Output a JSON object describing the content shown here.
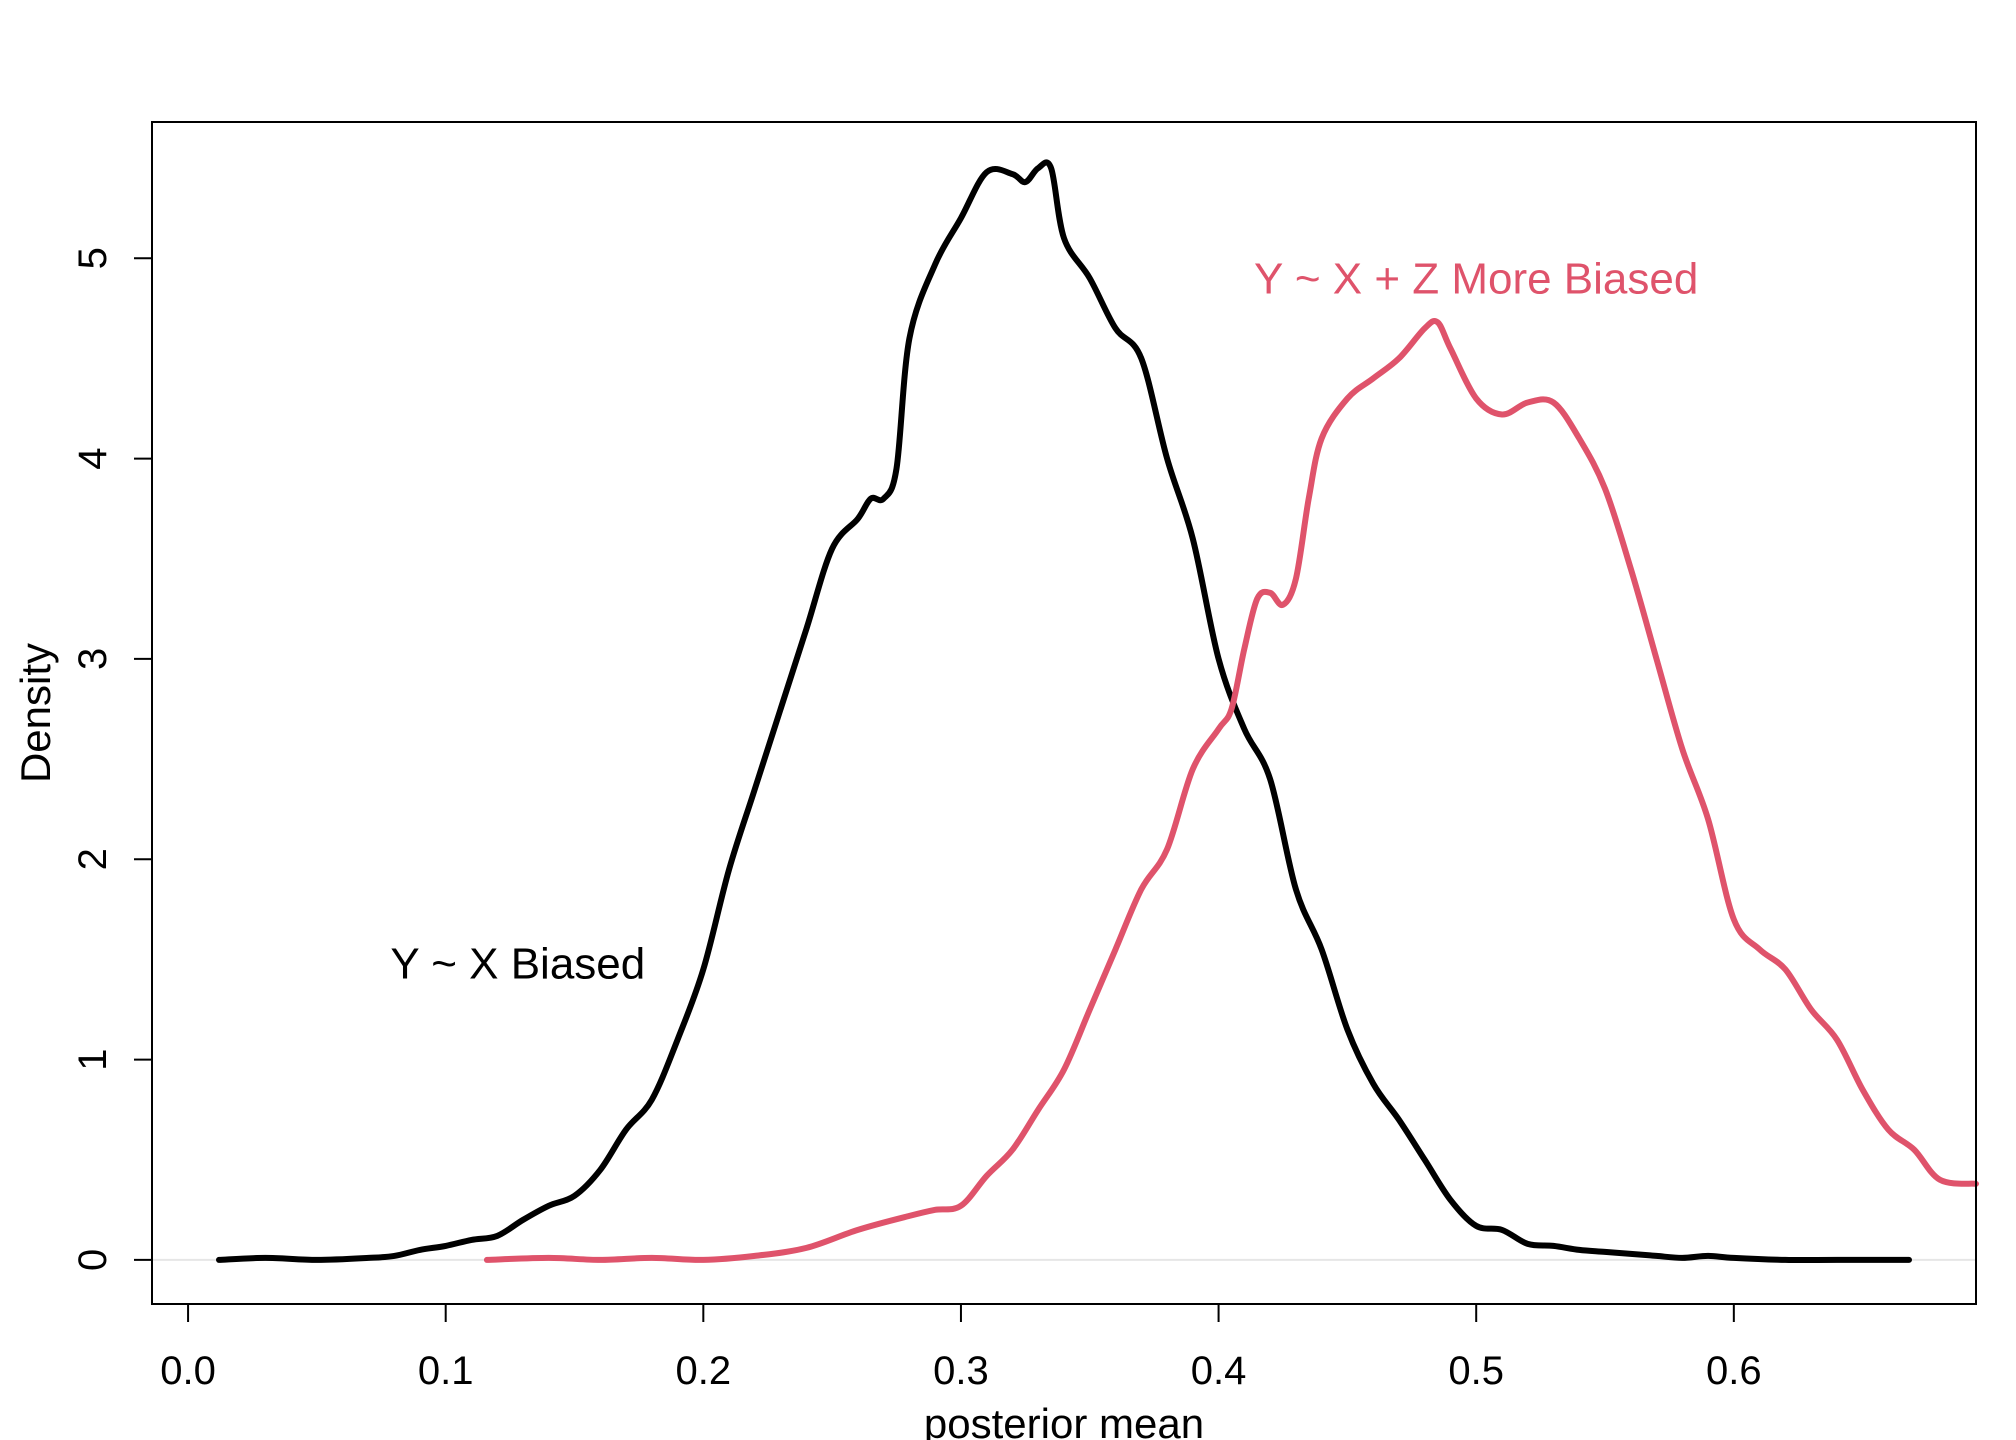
{
  "chart_data": {
    "type": "line",
    "title": "",
    "xlabel": "posterior mean",
    "ylabel": "Density",
    "xlim": [
      -0.014,
      0.694
    ],
    "ylim": [
      -0.22,
      5.68
    ],
    "x_ticks": [
      "0.0",
      "0.1",
      "0.2",
      "0.3",
      "0.4",
      "0.5",
      "0.6"
    ],
    "x_tick_values": [
      0.0,
      0.1,
      0.2,
      0.3,
      0.4,
      0.5,
      0.6
    ],
    "y_ticks": [
      "0",
      "1",
      "2",
      "3",
      "4",
      "5"
    ],
    "y_tick_values": [
      0,
      1,
      2,
      3,
      4,
      5
    ],
    "grid": false,
    "zero_line": true,
    "series": [
      {
        "color": "#000000",
        "x": [
          0.012,
          0.03,
          0.05,
          0.07,
          0.08,
          0.09,
          0.1,
          0.11,
          0.12,
          0.13,
          0.14,
          0.15,
          0.16,
          0.17,
          0.18,
          0.19,
          0.2,
          0.21,
          0.22,
          0.23,
          0.24,
          0.25,
          0.26,
          0.265,
          0.27,
          0.275,
          0.28,
          0.29,
          0.3,
          0.31,
          0.32,
          0.325,
          0.33,
          0.335,
          0.34,
          0.35,
          0.36,
          0.37,
          0.38,
          0.39,
          0.4,
          0.41,
          0.42,
          0.43,
          0.44,
          0.45,
          0.46,
          0.47,
          0.48,
          0.49,
          0.5,
          0.51,
          0.52,
          0.53,
          0.54,
          0.55,
          0.56,
          0.57,
          0.58,
          0.59,
          0.6,
          0.62,
          0.64,
          0.668
        ],
        "y": [
          0.0,
          0.01,
          0.0,
          0.01,
          0.02,
          0.05,
          0.07,
          0.1,
          0.12,
          0.2,
          0.27,
          0.32,
          0.45,
          0.65,
          0.8,
          1.1,
          1.45,
          1.95,
          2.35,
          2.75,
          3.15,
          3.55,
          3.7,
          3.8,
          3.8,
          3.95,
          4.6,
          4.97,
          5.2,
          5.43,
          5.42,
          5.38,
          5.45,
          5.45,
          5.1,
          4.9,
          4.65,
          4.5,
          4.0,
          3.6,
          3.0,
          2.65,
          2.4,
          1.85,
          1.55,
          1.15,
          0.88,
          0.7,
          0.5,
          0.3,
          0.17,
          0.15,
          0.08,
          0.07,
          0.05,
          0.04,
          0.03,
          0.02,
          0.01,
          0.02,
          0.01,
          0.0,
          0.0,
          0.0
        ]
      },
      {
        "color": "#DF536B",
        "x": [
          0.116,
          0.14,
          0.16,
          0.18,
          0.2,
          0.22,
          0.24,
          0.26,
          0.28,
          0.29,
          0.3,
          0.31,
          0.32,
          0.33,
          0.34,
          0.35,
          0.36,
          0.37,
          0.38,
          0.39,
          0.4,
          0.405,
          0.41,
          0.415,
          0.42,
          0.425,
          0.43,
          0.435,
          0.44,
          0.45,
          0.46,
          0.47,
          0.48,
          0.485,
          0.49,
          0.5,
          0.51,
          0.52,
          0.53,
          0.54,
          0.55,
          0.56,
          0.57,
          0.58,
          0.59,
          0.6,
          0.61,
          0.62,
          0.63,
          0.64,
          0.65,
          0.66,
          0.67,
          0.68,
          0.694
        ],
        "y": [
          0.0,
          0.01,
          0.0,
          0.01,
          0.0,
          0.02,
          0.06,
          0.15,
          0.22,
          0.25,
          0.27,
          0.42,
          0.55,
          0.75,
          0.95,
          1.25,
          1.55,
          1.85,
          2.05,
          2.45,
          2.65,
          2.75,
          3.05,
          3.3,
          3.33,
          3.27,
          3.4,
          3.8,
          4.1,
          4.3,
          4.4,
          4.5,
          4.65,
          4.68,
          4.55,
          4.3,
          4.22,
          4.28,
          4.28,
          4.1,
          3.85,
          3.45,
          3.0,
          2.55,
          2.2,
          1.7,
          1.55,
          1.45,
          1.25,
          1.1,
          0.85,
          0.65,
          0.55,
          0.4,
          0.38
        ]
      }
    ],
    "annotations": [
      {
        "text": "Y ~ X Biased",
        "x": 0.128,
        "y": 1.48,
        "color": "#000000"
      },
      {
        "text": "Y ~ X + Z More Biased",
        "x": 0.5,
        "y": 4.9,
        "color": "#DF536B"
      }
    ]
  }
}
